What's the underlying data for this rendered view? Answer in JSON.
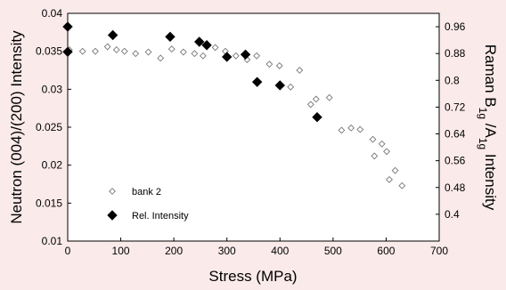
{
  "chart_data": {
    "type": "scatter",
    "title": "",
    "xlabel": "Stress (MPa)",
    "ylabel_left": "Neutron (004)/(200) Intensity",
    "ylabel_right": {
      "parts": [
        {
          "text": "Raman B",
          "sub": false
        },
        {
          "text": "1g",
          "sub": true
        },
        {
          "text": " /A",
          "sub": false
        },
        {
          "text": "1g",
          "sub": true
        },
        {
          "text": " Intensity",
          "sub": false
        }
      ]
    },
    "xlim": [
      0,
      700
    ],
    "ylim_left": [
      0.01,
      0.04
    ],
    "ylim_right": [
      0.32,
      1.0
    ],
    "x_ticks": [
      "0",
      "100",
      "200",
      "300",
      "400",
      "500",
      "600",
      "700"
    ],
    "y_ticks_left": [
      "0.01",
      "0.015",
      "0.02",
      "0.025",
      "0.03",
      "0.035",
      "0.04"
    ],
    "y_ticks_right": [
      "0.4",
      "0.48",
      "0.56",
      "0.64",
      "0.72",
      "0.8",
      "0.88",
      "0.96"
    ],
    "legend_position": "lower-left",
    "grid": false,
    "series": [
      {
        "name": "bank 2",
        "marker": "open-diamond",
        "color": "#777777",
        "axis": "left",
        "points": [
          [
            3,
            0.0352
          ],
          [
            28,
            0.035
          ],
          [
            52,
            0.035
          ],
          [
            75,
            0.0356
          ],
          [
            92,
            0.0352
          ],
          [
            107,
            0.035
          ],
          [
            128,
            0.0347
          ],
          [
            152,
            0.0349
          ],
          [
            175,
            0.0341
          ],
          [
            196,
            0.0353
          ],
          [
            218,
            0.0349
          ],
          [
            239,
            0.0347
          ],
          [
            255,
            0.0344
          ],
          [
            278,
            0.0355
          ],
          [
            297,
            0.035
          ],
          [
            317,
            0.0344
          ],
          [
            338,
            0.0339
          ],
          [
            356,
            0.0344
          ],
          [
            380,
            0.0333
          ],
          [
            399,
            0.0331
          ],
          [
            420,
            0.0303
          ],
          [
            437,
            0.0325
          ],
          [
            458,
            0.028
          ],
          [
            468,
            0.0287
          ],
          [
            493,
            0.0289
          ],
          [
            516,
            0.0246
          ],
          [
            534,
            0.0249
          ],
          [
            551,
            0.0247
          ],
          [
            575,
            0.0234
          ],
          [
            578,
            0.0212
          ],
          [
            592,
            0.0228
          ],
          [
            601,
            0.0218
          ],
          [
            606,
            0.0181
          ],
          [
            617,
            0.0193
          ],
          [
            630,
            0.0173
          ]
        ]
      },
      {
        "name": "Rel. Intensity",
        "marker": "filled-diamond",
        "color": "#000000",
        "axis": "right",
        "points": [
          [
            0,
            0.96
          ],
          [
            0,
            0.885
          ],
          [
            85,
            0.935
          ],
          [
            193,
            0.93
          ],
          [
            248,
            0.915
          ],
          [
            262,
            0.905
          ],
          [
            300,
            0.87
          ],
          [
            335,
            0.877
          ],
          [
            357,
            0.795
          ],
          [
            400,
            0.785
          ],
          [
            470,
            0.69
          ]
        ]
      }
    ]
  }
}
